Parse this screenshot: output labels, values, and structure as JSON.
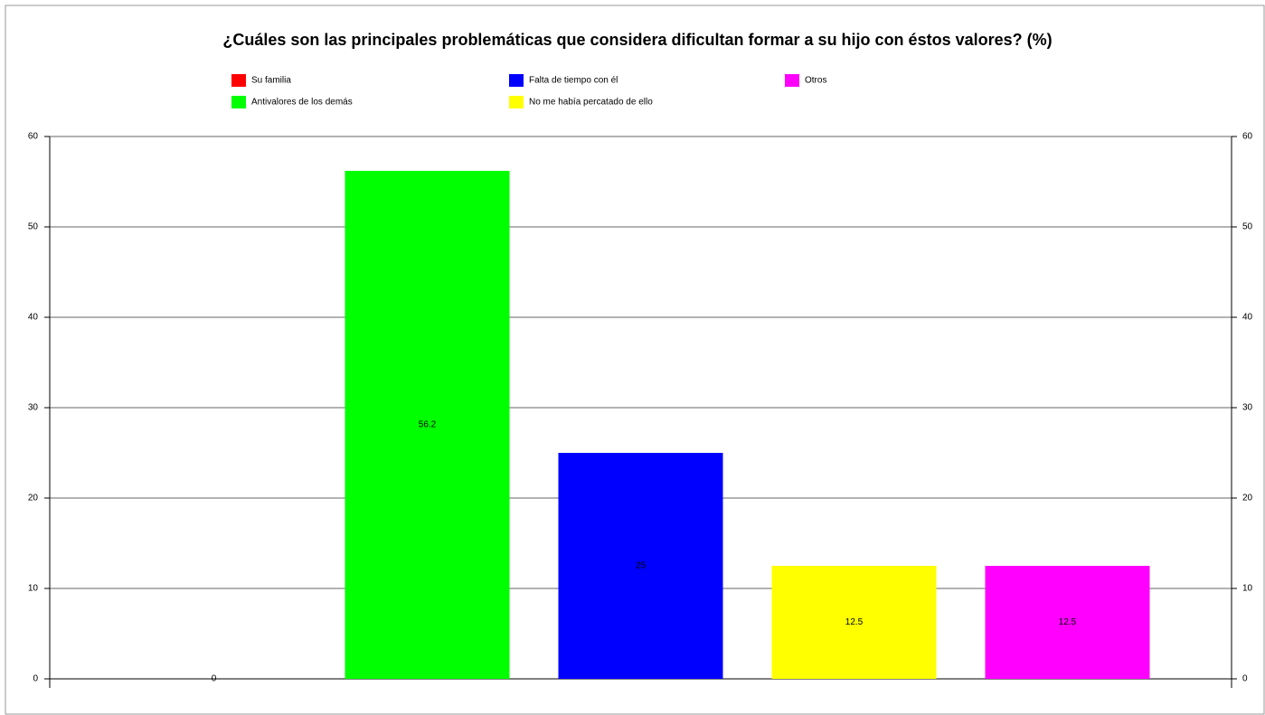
{
  "chart_data": {
    "type": "bar",
    "title": "¿Cuáles son las principales problemáticas que considera dificultan formar a su hijo con éstos valores? (%)",
    "series": [
      {
        "name": "Su familia",
        "color": "#ff0000",
        "values": [
          0
        ]
      },
      {
        "name": "Antivalores de los demás",
        "color": "#00ff00",
        "values": [
          56.2
        ]
      },
      {
        "name": "Falta de tiempo con él",
        "color": "#0000ff",
        "values": [
          25
        ]
      },
      {
        "name": "No me había percatado de ello",
        "color": "#ffff00",
        "values": [
          12.5
        ]
      },
      {
        "name": "Otros",
        "color": "#ff00ff",
        "values": [
          12.5
        ]
      }
    ],
    "ylim": [
      0,
      60
    ],
    "yticks": [
      0,
      10,
      20,
      30,
      40,
      50,
      60
    ],
    "y2lim": [
      0,
      60
    ],
    "y2ticks": [
      0,
      10,
      20,
      30,
      40,
      50,
      60
    ],
    "grid": true,
    "legend": "top"
  }
}
